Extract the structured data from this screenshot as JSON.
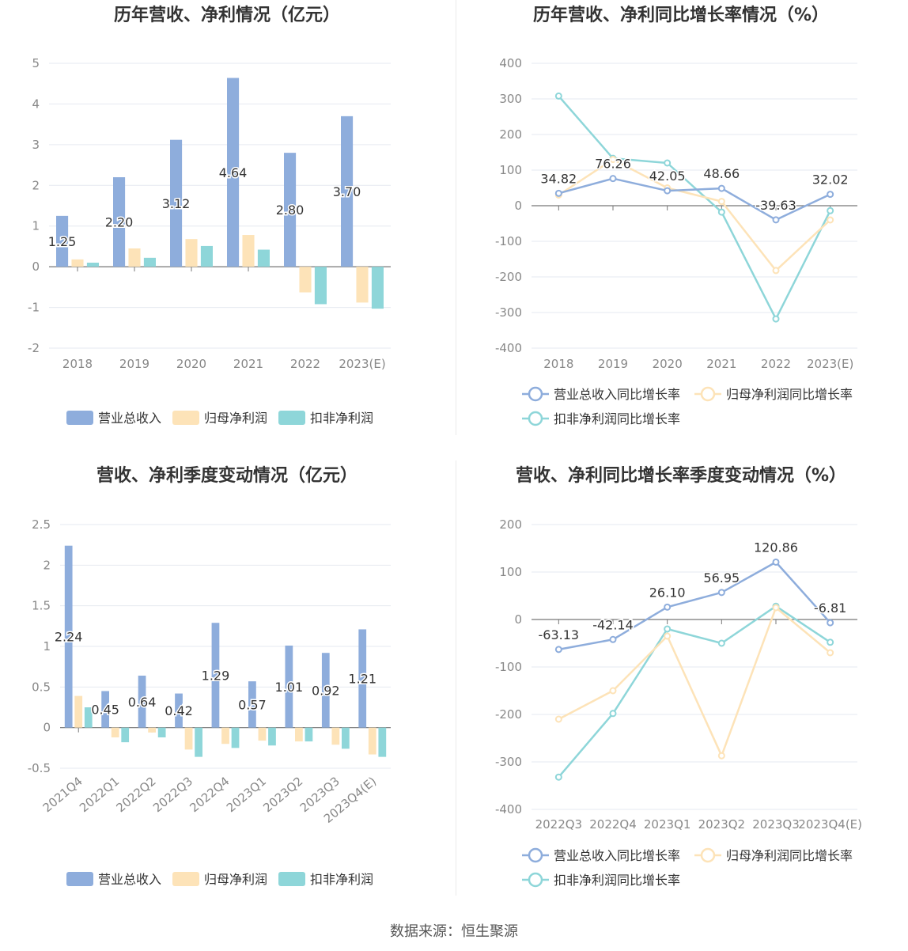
{
  "footer": "数据来源：恒生聚源",
  "chart_data": [
    {
      "type": "bar",
      "title": "历年营收、净利情况（亿元）",
      "categories": [
        "2018",
        "2019",
        "2020",
        "2021",
        "2022",
        "2023(E)"
      ],
      "ylim": [
        -2,
        5
      ],
      "yticks": [
        -2,
        -1,
        0,
        1,
        2,
        3,
        4,
        5
      ],
      "series": [
        {
          "name": "营业总收入",
          "values": [
            1.25,
            2.2,
            3.12,
            4.64,
            2.8,
            3.7
          ],
          "color": "#8eaddc",
          "labels": [
            "1.25",
            "2.20",
            "3.12",
            "4.64",
            "2.80",
            "3.70"
          ]
        },
        {
          "name": "归母净利润",
          "values": [
            0.18,
            0.45,
            0.68,
            0.78,
            -0.63,
            -0.88
          ],
          "color": "#fde3b8"
        },
        {
          "name": "扣非净利润",
          "values": [
            0.1,
            0.22,
            0.51,
            0.42,
            -0.92,
            -1.03
          ],
          "color": "#8ed6d9"
        }
      ]
    },
    {
      "type": "line",
      "title": "历年营收、净利同比增长率情况（%）",
      "categories": [
        "2018",
        "2019",
        "2020",
        "2021",
        "2022",
        "2023(E)"
      ],
      "ylim": [
        -400,
        400
      ],
      "yticks": [
        -400,
        -300,
        -200,
        -100,
        0,
        100,
        200,
        300,
        400
      ],
      "series": [
        {
          "name": "营业总收入同比增长率",
          "values": [
            34.82,
            76.26,
            42.05,
            48.66,
            -39.63,
            32.02
          ],
          "color": "#8eaddc",
          "labels": [
            "34.82",
            "76.26",
            "42.05",
            "48.66",
            "-39.63",
            "32.02"
          ]
        },
        {
          "name": "归母净利润同比增长率",
          "values": [
            30,
            130,
            50,
            12,
            -182,
            -40
          ],
          "color": "#fde3b8"
        },
        {
          "name": "扣非净利润同比增长率",
          "values": [
            308,
            133,
            120,
            -18,
            -318,
            -14
          ],
          "color": "#8ed6d9"
        }
      ]
    },
    {
      "type": "bar",
      "title": "营收、净利季度变动情况（亿元）",
      "categories": [
        "2021Q4",
        "2022Q1",
        "2022Q2",
        "2022Q3",
        "2022Q4",
        "2023Q1",
        "2023Q2",
        "2023Q3",
        "2023Q4(E)"
      ],
      "ylim": [
        -0.5,
        2.5
      ],
      "yticks": [
        -0.5,
        0,
        0.5,
        1,
        1.5,
        2,
        2.5
      ],
      "rotateX": true,
      "series": [
        {
          "name": "营业总收入",
          "values": [
            2.24,
            0.45,
            0.64,
            0.42,
            1.29,
            0.57,
            1.01,
            0.92,
            1.21
          ],
          "color": "#8eaddc",
          "labels": [
            "2.24",
            "0.45",
            "0.64",
            "0.42",
            "1.29",
            "0.57",
            "1.01",
            "0.92",
            "1.21"
          ]
        },
        {
          "name": "归母净利润",
          "values": [
            0.39,
            -0.12,
            -0.06,
            -0.27,
            -0.2,
            -0.16,
            -0.17,
            -0.21,
            -0.33
          ],
          "color": "#fde3b8"
        },
        {
          "name": "扣非净利润",
          "values": [
            0.25,
            -0.18,
            -0.12,
            -0.36,
            -0.25,
            -0.22,
            -0.17,
            -0.26,
            -0.36
          ],
          "color": "#8ed6d9"
        }
      ]
    },
    {
      "type": "line",
      "title": "营收、净利同比增长率季度变动情况（%）",
      "categories": [
        "2022Q3",
        "2022Q4",
        "2023Q1",
        "2023Q2",
        "2023Q3",
        "2023Q4(E)"
      ],
      "ylim": [
        -400,
        200
      ],
      "yticks": [
        -400,
        -300,
        -200,
        -100,
        0,
        100,
        200
      ],
      "series": [
        {
          "name": "营业总收入同比增长率",
          "values": [
            -63.13,
            -42.14,
            26.1,
            56.95,
            120.86,
            -6.81
          ],
          "color": "#8eaddc",
          "labels": [
            "-63.13",
            "-42.14",
            "26.10",
            "56.95",
            "120.86",
            "-6.81"
          ]
        },
        {
          "name": "归母净利润同比增长率",
          "values": [
            -210,
            -150,
            -35,
            -287,
            25,
            -70
          ],
          "color": "#fde3b8"
        },
        {
          "name": "扣非净利润同比增长率",
          "values": [
            -332,
            -198,
            -20,
            -50,
            28,
            -48
          ],
          "color": "#8ed6d9"
        }
      ]
    }
  ]
}
